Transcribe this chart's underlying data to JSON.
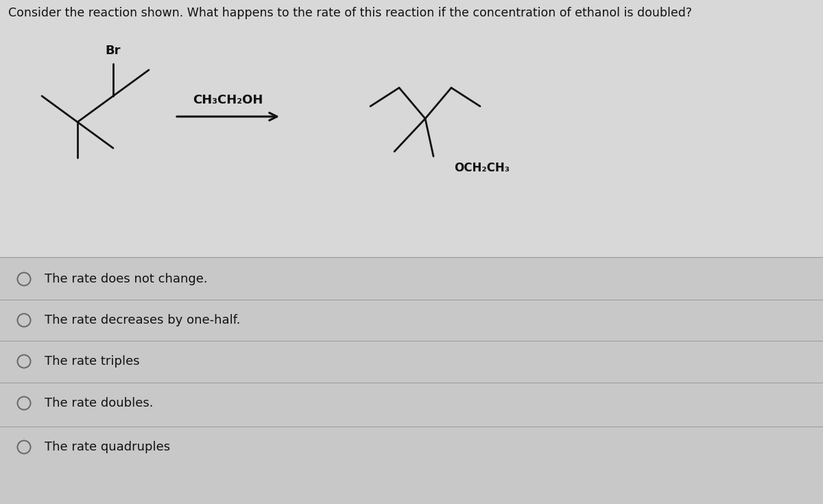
{
  "title": "Consider the reaction shown. What happens to the rate of this reaction if the concentration of ethanol is doubled?",
  "title_fontsize": 12.5,
  "bg_color": "#c8c8c8",
  "upper_bg_color": "#d8d8d8",
  "options": [
    "The rate does not change.",
    "The rate decreases by one-half.",
    "The rate triples",
    "The rate doubles.",
    "The rate quadruples"
  ],
  "option_fontsize": 13,
  "reagent_label": "CH₃CH₂OH",
  "product_label": "OCH₂CH₃",
  "br_label": "Br",
  "line_color": "#111111",
  "text_color": "#111111",
  "divider_color": "#999999",
  "radio_color": "#666666"
}
